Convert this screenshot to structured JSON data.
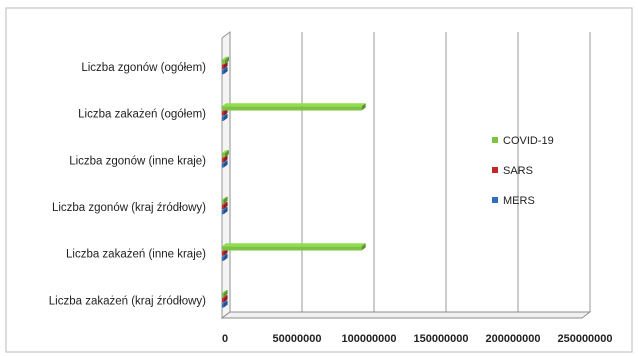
{
  "chart_data": {
    "type": "bar",
    "orientation": "horizontal",
    "style": "3d",
    "categories": [
      "Liczba zgonów (ogółem)",
      "Liczba zakażeń (ogółem)",
      "Liczba zgonów (inne kraje)",
      "Liczba zgonów (kraj źródłowy)",
      "Liczba zakażeń (inne kraje)",
      "Liczba zakażeń (kraj źródłowy)"
    ],
    "series": [
      {
        "name": "COVID-19",
        "color": "#7dc242",
        "values": [
          2100000,
          97000000,
          2000000,
          4600,
          97000000,
          90000
        ]
      },
      {
        "name": "SARS",
        "color": "#c0282b",
        "values": [
          774,
          8098,
          425,
          349,
          2765,
          5333
        ]
      },
      {
        "name": "MERS",
        "color": "#2f6ebf",
        "values": [
          858,
          2494,
          47,
          811,
          266,
          2228
        ]
      }
    ],
    "xaxis": {
      "ticks": [
        "0",
        "50000000",
        "100000000",
        "150000000",
        "200000000",
        "250000000"
      ],
      "tick_values": [
        0,
        50000000,
        100000000,
        150000000,
        200000000,
        250000000
      ]
    },
    "xlim": [
      0,
      250000000
    ],
    "grid": "vertical",
    "legend": "right"
  }
}
